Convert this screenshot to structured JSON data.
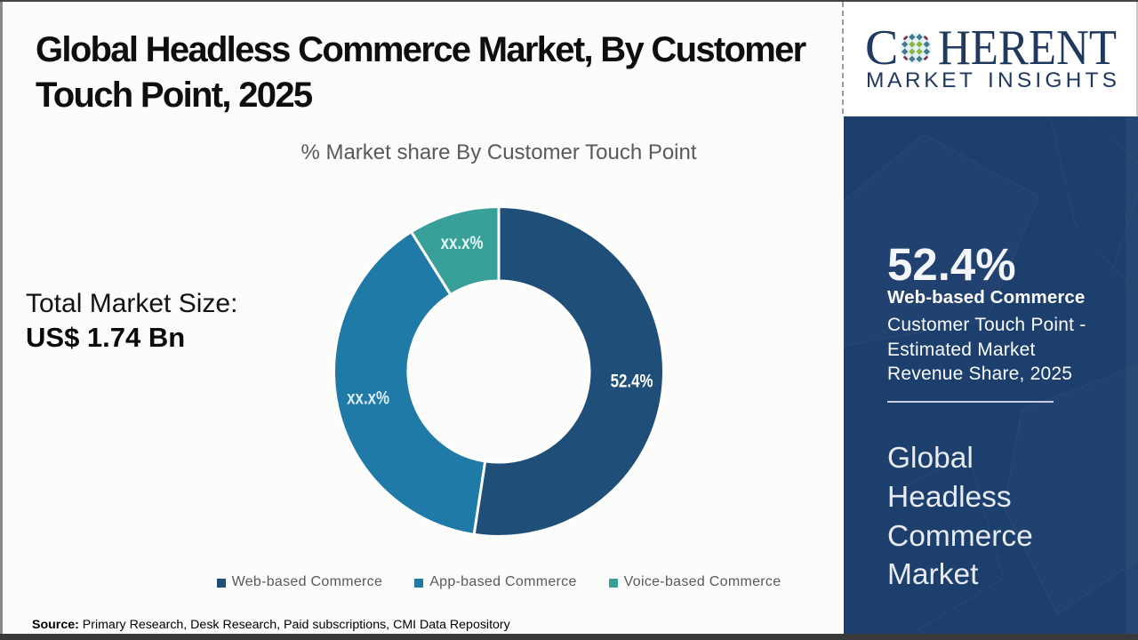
{
  "header": {
    "title": "Global Headless Commerce Market, By Customer Touch Point, 2025",
    "title_lines": [
      "Global Headless Commerce Market, By Customer",
      "Touch Point, 2025"
    ]
  },
  "total_market": {
    "label": "Total Market Size:",
    "value": "US$ 1.74 Bn"
  },
  "chart_data": {
    "type": "pie",
    "subtype": "donut",
    "title": "% Market share By Customer Touch Point",
    "categories": [
      "Web-based Commerce",
      "App-based Commerce",
      "Voice-based Commerce"
    ],
    "values": [
      52.4,
      38.7,
      8.9
    ],
    "slice_labels": [
      "52.4%",
      "xx.x%",
      "xx.x%"
    ],
    "colors": [
      "#1f4e78",
      "#1f7aa8",
      "#38a099"
    ],
    "slice_label_colors": [
      "#ffffff",
      "#d9edf5",
      "#e3f5f4"
    ],
    "start_angle_deg": 0,
    "direction": "clockwise",
    "legend_position": "bottom",
    "notes": "values for App-based and Voice-based are masked as xx.x% in the figure; arc sizes estimated from the drawing"
  },
  "source": {
    "label": "Source:",
    "text": " Primary Research, Desk Research, Paid subscriptions, CMI Data Repository"
  },
  "sidebar": {
    "logo": {
      "brand_c": "C",
      "brand_rest": "HERENT",
      "brand_sub_word1": "MARKET",
      "brand_sub_word2": "INSIGHTS",
      "navy": "#20395f",
      "sphere_colors": {
        "green": "#8eb73e",
        "steel": "#44798f",
        "maroon": "#7e2d45",
        "halo": "#e3f1f7"
      }
    },
    "stat_value": "52.4%",
    "stat_title": "Web-based Commerce",
    "stat_desc": "Customer Touch Point - Estimated Market Revenue Share, 2025",
    "stat_desc_lines": [
      "Customer Touch Point -",
      "Estimated Market",
      "Revenue Share, 2025"
    ],
    "market_name": "Global Headless Commerce Market",
    "market_name_lines": [
      "Global",
      "Headless",
      "Commerce",
      "Market"
    ],
    "panel_color": "#1d3f6e"
  }
}
